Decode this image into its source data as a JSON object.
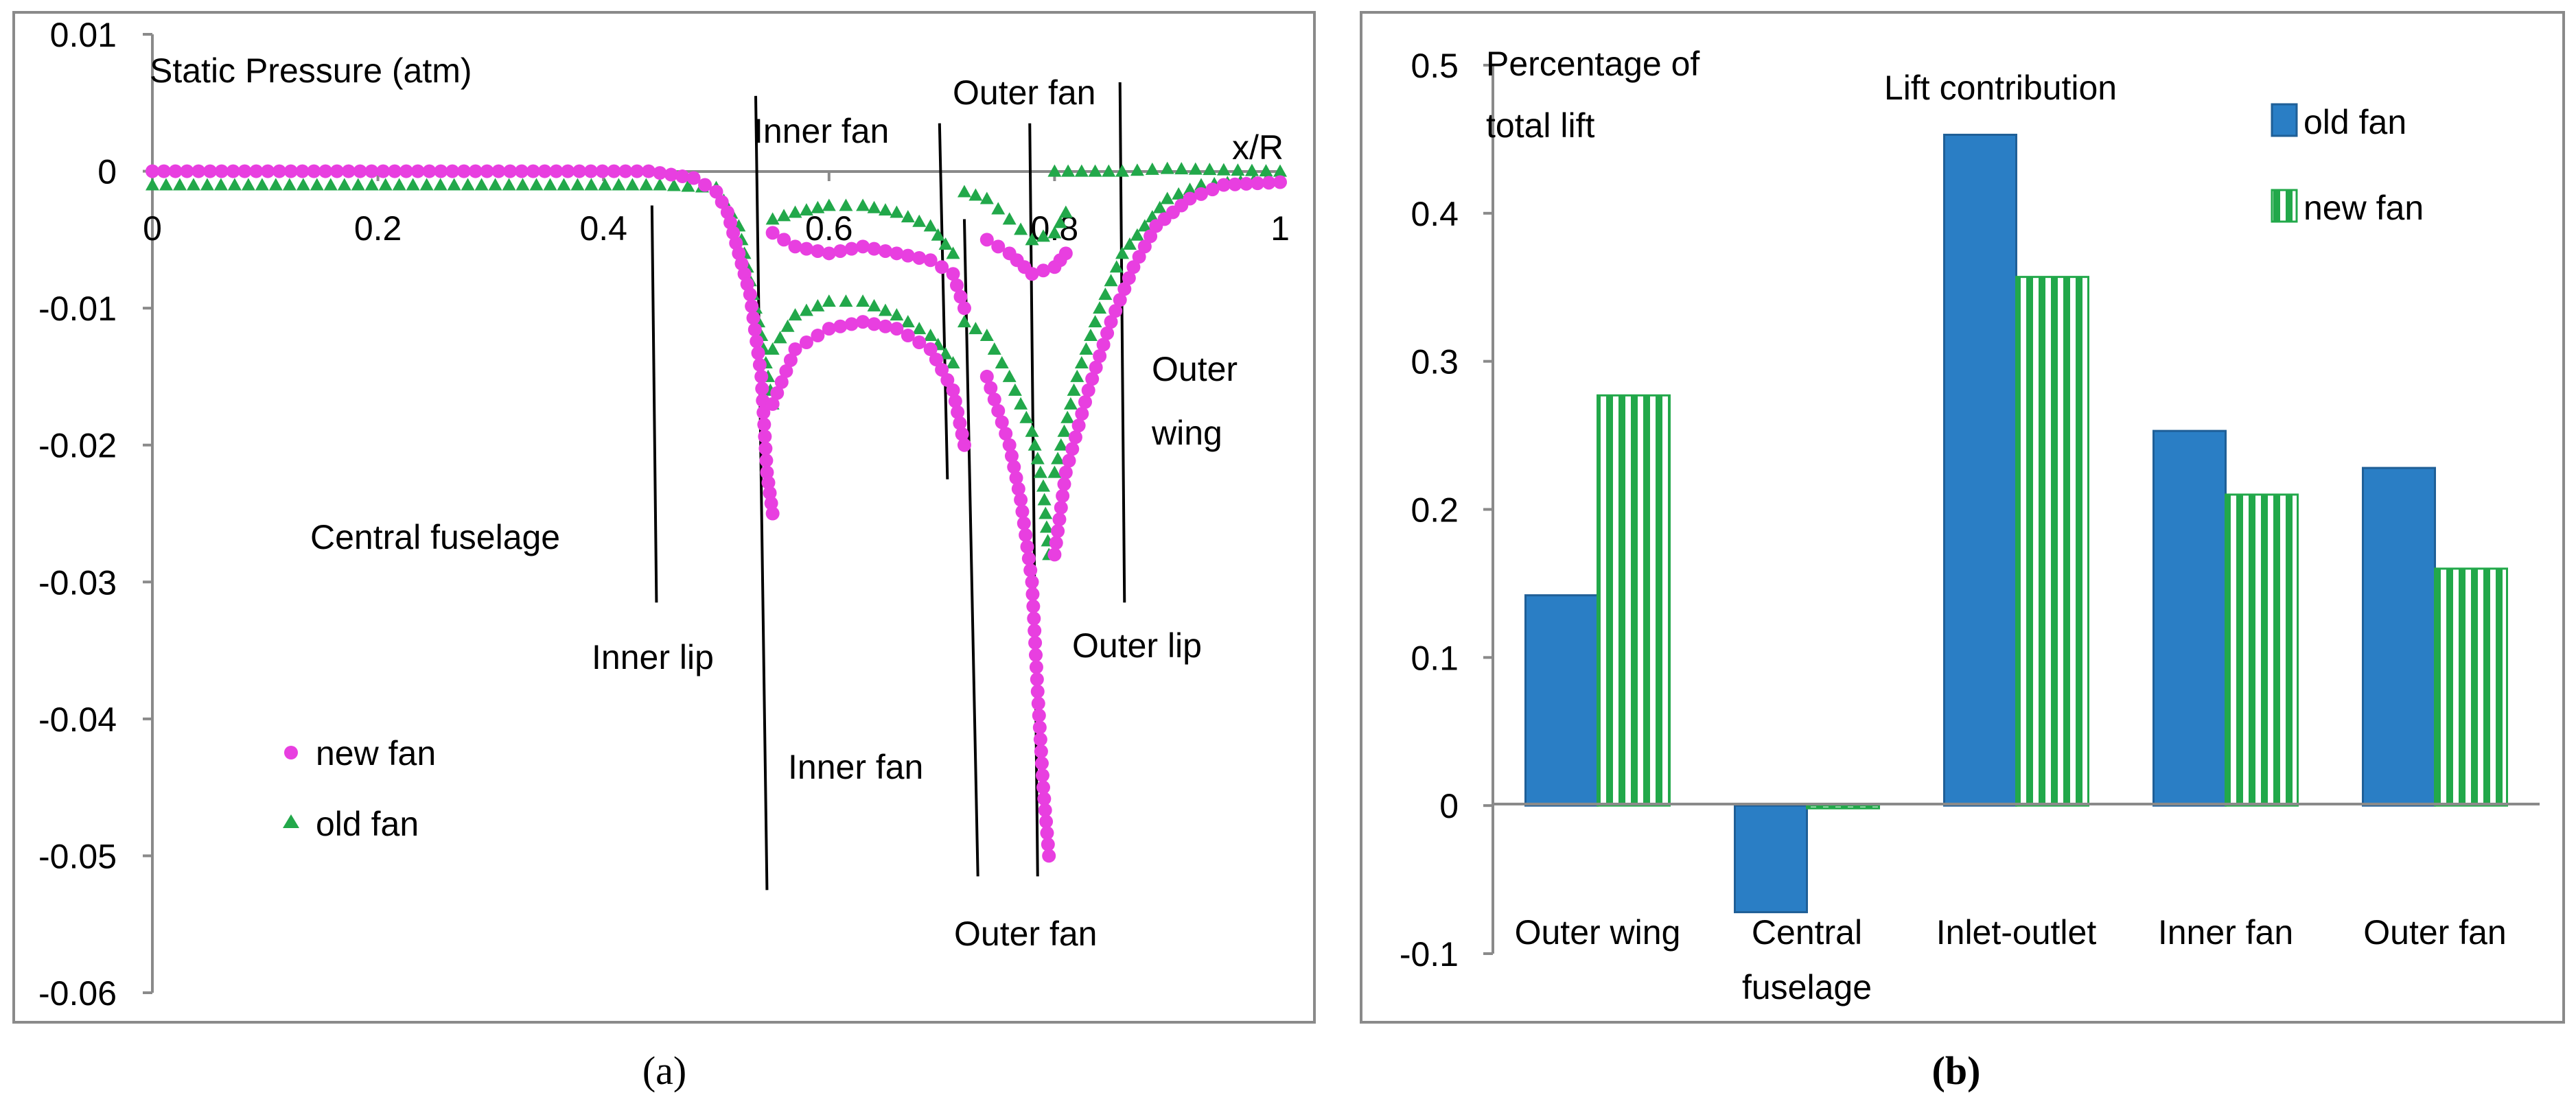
{
  "chart_data": [
    {
      "type": "scatter",
      "panel_label": "(a)",
      "title": "Static Pressure (atm)",
      "xlabel": "x/R",
      "xlim": [
        0,
        1
      ],
      "ylim": [
        -0.06,
        0.01
      ],
      "x_ticks": [
        "0",
        "0.2",
        "0.4",
        "0.6",
        "0.8",
        "1"
      ],
      "y_ticks": [
        "0.01",
        "0",
        "-0.01",
        "-0.02",
        "-0.03",
        "-0.04",
        "-0.05",
        "-0.06"
      ],
      "legend": [
        {
          "name": "new fan",
          "color": "#e83fe0",
          "marker": "circle"
        },
        {
          "name": "old fan",
          "color": "#22a84a",
          "marker": "triangle"
        }
      ],
      "annotations": [
        "Inner fan",
        "Outer fan",
        "Outer wing",
        "Central fuselage",
        "Inner lip",
        "Outer lip",
        "Inner fan",
        "Outer fan"
      ],
      "series": [
        {
          "name": "new fan",
          "color": "#e83fe0",
          "segments": [
            [
              [
                0,
                0
              ],
              [
                0.44,
                0
              ],
              [
                0.48,
                -0.0005
              ],
              [
                0.5,
                -0.0015
              ],
              [
                0.51,
                -0.003
              ],
              [
                0.52,
                -0.006
              ],
              [
                0.53,
                -0.009
              ],
              [
                0.54,
                -0.015
              ],
              [
                0.545,
                -0.022
              ],
              [
                0.55,
                -0.025
              ]
            ],
            [
              [
                0.55,
                -0.0045
              ],
              [
                0.57,
                -0.0055
              ],
              [
                0.6,
                -0.006
              ],
              [
                0.63,
                -0.0055
              ],
              [
                0.66,
                -0.006
              ],
              [
                0.69,
                -0.0065
              ],
              [
                0.71,
                -0.0075
              ],
              [
                0.72,
                -0.01
              ]
            ],
            [
              [
                0.55,
                -0.017
              ],
              [
                0.57,
                -0.013
              ],
              [
                0.6,
                -0.0115
              ],
              [
                0.63,
                -0.011
              ],
              [
                0.66,
                -0.0115
              ],
              [
                0.69,
                -0.013
              ],
              [
                0.71,
                -0.016
              ],
              [
                0.72,
                -0.02
              ]
            ],
            [
              [
                0.74,
                -0.005
              ],
              [
                0.76,
                -0.006
              ],
              [
                0.78,
                -0.0075
              ],
              [
                0.8,
                -0.007
              ],
              [
                0.81,
                -0.006
              ]
            ],
            [
              [
                0.74,
                -0.015
              ],
              [
                0.76,
                -0.02
              ],
              [
                0.77,
                -0.024
              ],
              [
                0.78,
                -0.03
              ],
              [
                0.785,
                -0.038
              ],
              [
                0.79,
                -0.045
              ],
              [
                0.795,
                -0.05
              ]
            ],
            [
              [
                0.8,
                -0.028
              ],
              [
                0.81,
                -0.022
              ],
              [
                0.83,
                -0.016
              ],
              [
                0.85,
                -0.011
              ],
              [
                0.87,
                -0.007
              ],
              [
                0.89,
                -0.004
              ],
              [
                0.92,
                -0.002
              ],
              [
                0.95,
                -0.001
              ],
              [
                1,
                -0.0008
              ]
            ]
          ]
        },
        {
          "name": "old fan",
          "color": "#22a84a",
          "segments": [
            [
              [
                0,
                -0.001
              ],
              [
                0.45,
                -0.001
              ],
              [
                0.5,
                -0.0012
              ],
              [
                0.52,
                -0.004
              ],
              [
                0.53,
                -0.008
              ],
              [
                0.54,
                -0.012
              ],
              [
                0.55,
                -0.017
              ]
            ],
            [
              [
                0.55,
                -0.0035
              ],
              [
                0.57,
                -0.003
              ],
              [
                0.6,
                -0.0025
              ],
              [
                0.63,
                -0.0025
              ],
              [
                0.66,
                -0.003
              ],
              [
                0.69,
                -0.004
              ],
              [
                0.71,
                -0.006
              ]
            ],
            [
              [
                0.55,
                -0.013
              ],
              [
                0.57,
                -0.0105
              ],
              [
                0.6,
                -0.0095
              ],
              [
                0.63,
                -0.0095
              ],
              [
                0.66,
                -0.0105
              ],
              [
                0.69,
                -0.012
              ],
              [
                0.71,
                -0.014
              ]
            ],
            [
              [
                0.72,
                -0.0015
              ],
              [
                0.74,
                -0.002
              ],
              [
                0.76,
                -0.0035
              ],
              [
                0.78,
                -0.005
              ],
              [
                0.8,
                -0.0045
              ],
              [
                0.81,
                -0.003
              ]
            ],
            [
              [
                0.72,
                -0.011
              ],
              [
                0.74,
                -0.012
              ],
              [
                0.76,
                -0.015
              ],
              [
                0.78,
                -0.019
              ],
              [
                0.79,
                -0.023
              ],
              [
                0.795,
                -0.028
              ]
            ],
            [
              [
                0.8,
                -0.022
              ],
              [
                0.82,
                -0.015
              ],
              [
                0.84,
                -0.01
              ],
              [
                0.86,
                -0.006
              ],
              [
                0.88,
                -0.004
              ],
              [
                0.9,
                -0.002
              ],
              [
                0.93,
                -0.001
              ],
              [
                1,
                -0.0005
              ]
            ],
            [
              [
                0.8,
                0
              ],
              [
                0.86,
                0
              ],
              [
                0.9,
                0.0002
              ],
              [
                1,
                0
              ]
            ]
          ]
        }
      ],
      "boundary_lines": [
        {
          "from": [
            0.443,
            -0.0025
          ],
          "to": [
            0.447,
            -0.0315
          ]
        },
        {
          "from": [
            0.535,
            0.0055
          ],
          "to": [
            0.545,
            -0.0525
          ]
        },
        {
          "from": [
            0.698,
            0.0035
          ],
          "to": [
            0.705,
            -0.0225
          ]
        },
        {
          "from": [
            0.72,
            -0.0035
          ],
          "to": [
            0.732,
            -0.0515
          ]
        },
        {
          "from": [
            0.778,
            0.0035
          ],
          "to": [
            0.785,
            -0.0515
          ]
        },
        {
          "from": [
            0.858,
            0.0065
          ],
          "to": [
            0.862,
            -0.0315
          ]
        }
      ]
    },
    {
      "type": "bar",
      "panel_label": "(b)",
      "title": "Lift contribution",
      "ylabel": "Percentage of total lift",
      "ylabel_lines": [
        "Percentage of",
        "total lift"
      ],
      "ylim": [
        -0.1,
        0.5
      ],
      "y_ticks": [
        "0.5",
        "0.4",
        "0.3",
        "0.2",
        "0.1",
        "0",
        "-0.1"
      ],
      "categories": [
        [
          "Outer wing"
        ],
        [
          "Central",
          "fuselage"
        ],
        [
          "Inlet-outlet"
        ],
        [
          "Inner fan"
        ],
        [
          "Outer fan"
        ]
      ],
      "series": [
        {
          "name": "old fan",
          "color": "#2a7ec5",
          "pattern": "solid",
          "values": [
            0.142,
            -0.072,
            0.453,
            0.253,
            0.228
          ]
        },
        {
          "name": "new fan",
          "color": "#22a84a",
          "pattern": "vertical-stripes",
          "values": [
            0.277,
            0.0,
            0.357,
            0.21,
            0.16
          ]
        }
      ]
    }
  ]
}
